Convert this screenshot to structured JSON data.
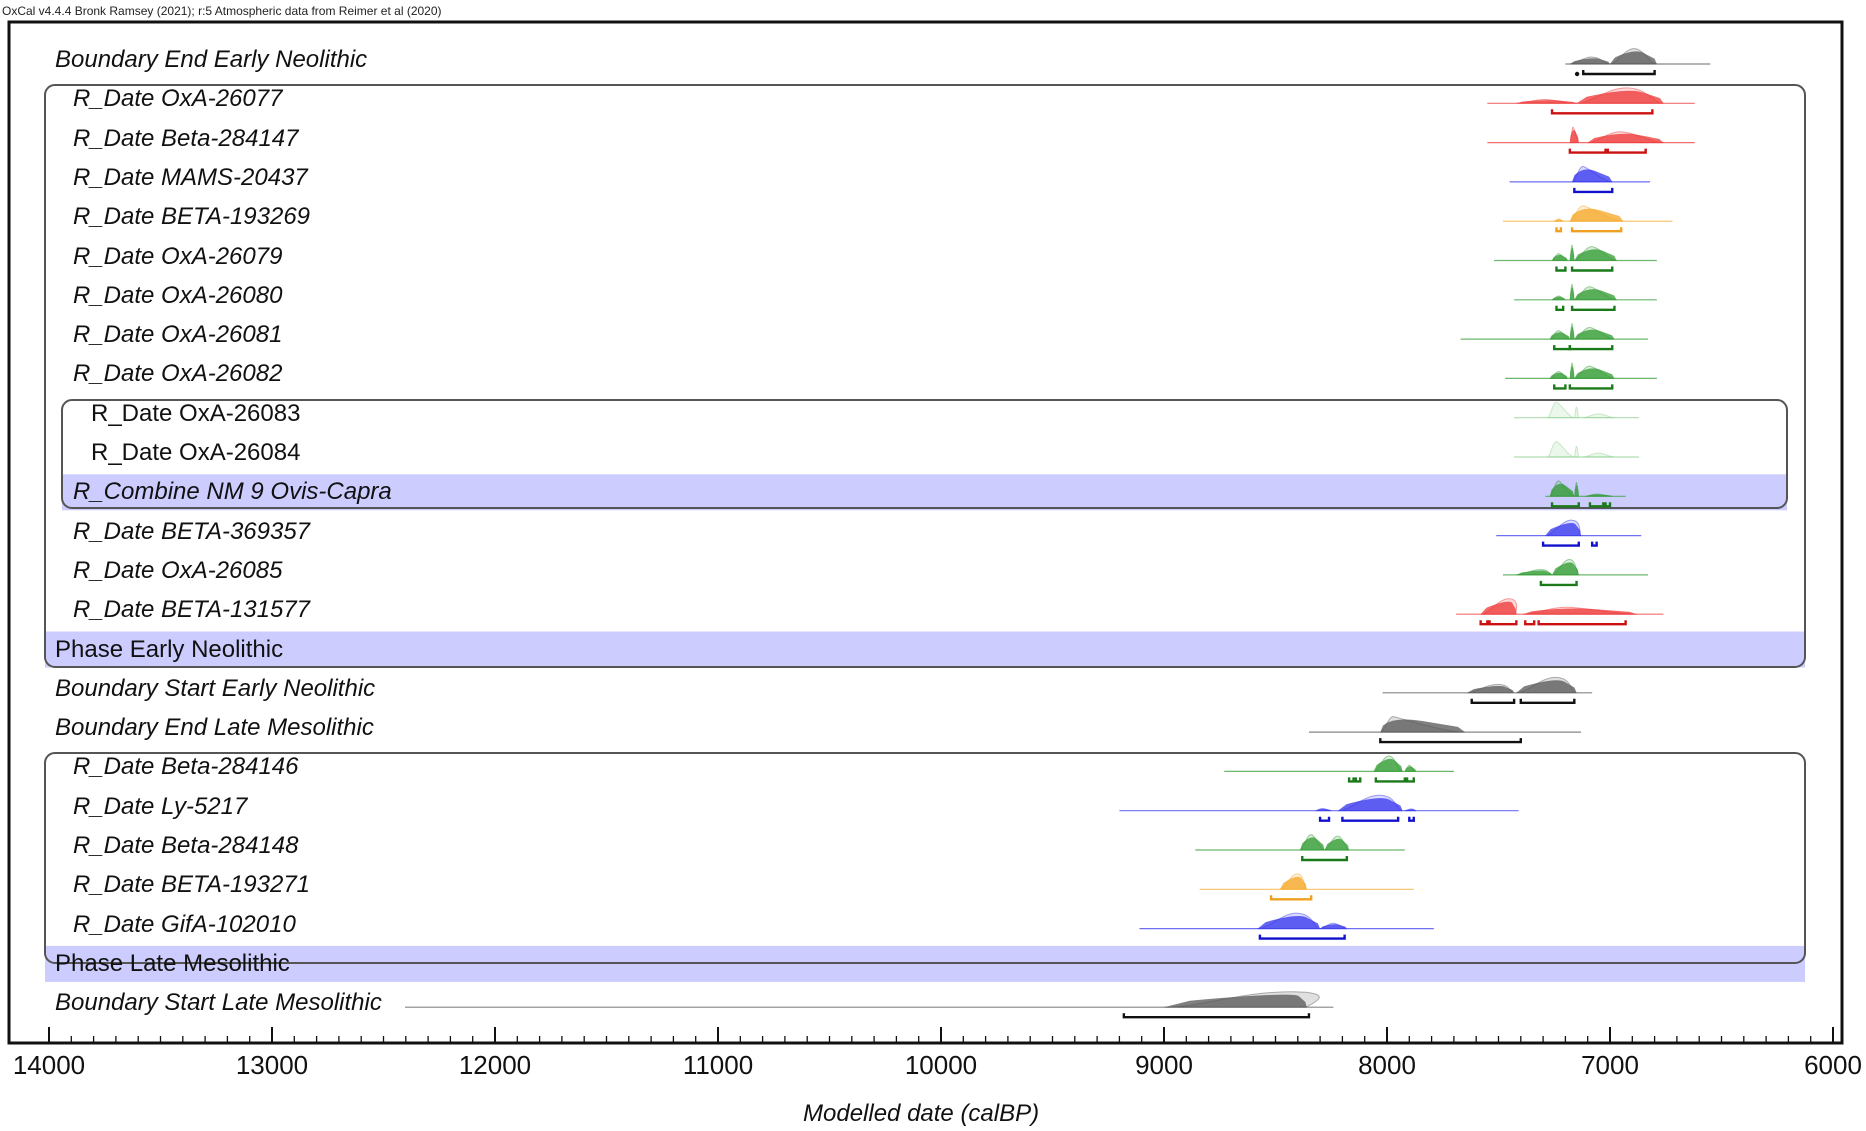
{
  "header": {
    "credit": "OxCal v4.4.4 Bronk Ramsey (2021); r:5 Atmospheric data from Reimer et al (2020)"
  },
  "colors": {
    "black": "#555555",
    "red": "#ee3333",
    "blue": "#3333ee",
    "orange": "#f5a623",
    "green": "#2e9a2e",
    "lightgreen": "#8fd08f",
    "band": "#ccccff",
    "frame": "#111111",
    "box": "#555555"
  },
  "axis": {
    "title": "Modelled date (calBP)",
    "ticks": [
      14000,
      13000,
      12000,
      11000,
      10000,
      9000,
      8000,
      7000,
      6000
    ],
    "tick_labels": [
      "14000",
      "13000",
      "12000",
      "11000",
      "10000",
      "9000",
      "8000",
      "7000",
      "6000"
    ],
    "range": [
      14000,
      6000
    ]
  },
  "chart_data": {
    "type": "range-distribution (OxCal multiplot)",
    "title": "OxCal v4.4.4 Bronk Ramsey (2021); r:5 Atmospheric data from Reimer et al (2020)",
    "xlabel": "Modelled date (calBP)",
    "ylabel": "",
    "xlim": [
      14000,
      6000
    ],
    "grid": false,
    "rows": [
      {
        "label": "Boundary End Early Neolithic",
        "italic": true,
        "indent": 0,
        "color": "black",
        "line": [
          7200,
          6550
        ],
        "peaks": [
          [
            7180,
            7000,
            0.45,
            7080
          ],
          [
            7000,
            6790,
            1.0,
            6890
          ]
        ],
        "hpd": [
          [
            7150,
            7145
          ],
          [
            7120,
            6800
          ]
        ]
      },
      {
        "label": "R_Date OxA-26077",
        "italic": true,
        "indent": 1,
        "color": "red",
        "line": [
          7550,
          6620
        ],
        "peaks": [
          [
            7420,
            7150,
            0.25,
            7290
          ],
          [
            7150,
            6760,
            1.0,
            6920
          ]
        ],
        "hpd": [
          [
            7260,
            6810
          ]
        ]
      },
      {
        "label": "R_Date Beta-284147",
        "italic": true,
        "indent": 1,
        "color": "red",
        "line": [
          7550,
          6620
        ],
        "peaks": [
          [
            7180,
            7140,
            1.0,
            7165
          ],
          [
            7100,
            6760,
            0.7,
            6950
          ]
        ],
        "hpd": [
          [
            7180,
            7020
          ],
          [
            7010,
            6840
          ]
        ]
      },
      {
        "label": "R_Date MAMS-20437",
        "italic": true,
        "indent": 1,
        "color": "blue",
        "line": [
          7450,
          6820
        ],
        "peaks": [
          [
            7170,
            6990,
            1.0,
            7120
          ]
        ],
        "hpd": [
          [
            7160,
            6990
          ]
        ]
      },
      {
        "label": "R_Date BETA-193269",
        "italic": true,
        "indent": 1,
        "color": "orange",
        "line": [
          7480,
          6720
        ],
        "peaks": [
          [
            7250,
            7210,
            0.15,
            7230
          ],
          [
            7180,
            6940,
            1.0,
            7120
          ]
        ],
        "hpd": [
          [
            7240,
            7220
          ],
          [
            7170,
            6950
          ]
        ]
      },
      {
        "label": "R_Date OxA-26079",
        "italic": true,
        "indent": 1,
        "color": "green",
        "line": [
          7520,
          6790
        ],
        "peaks": [
          [
            7260,
            7190,
            0.45,
            7230
          ],
          [
            7180,
            7160,
            1.0,
            7170
          ],
          [
            7160,
            6970,
            0.9,
            7080
          ]
        ],
        "hpd": [
          [
            7240,
            7200
          ],
          [
            7170,
            6990
          ]
        ]
      },
      {
        "label": "R_Date OxA-26080",
        "italic": true,
        "indent": 1,
        "color": "green",
        "line": [
          7430,
          6790
        ],
        "peaks": [
          [
            7260,
            7200,
            0.25,
            7230
          ],
          [
            7180,
            7160,
            1.0,
            7170
          ],
          [
            7160,
            6970,
            0.85,
            7090
          ]
        ],
        "hpd": [
          [
            7240,
            7210
          ],
          [
            7170,
            6980
          ]
        ]
      },
      {
        "label": "R_Date OxA-26081",
        "italic": true,
        "indent": 1,
        "color": "green",
        "line": [
          7670,
          6830
        ],
        "peaks": [
          [
            7270,
            7180,
            0.55,
            7230
          ],
          [
            7180,
            7160,
            1.0,
            7170
          ],
          [
            7160,
            6980,
            0.75,
            7090
          ]
        ],
        "hpd": [
          [
            7250,
            7180
          ],
          [
            7180,
            6990
          ]
        ]
      },
      {
        "label": "R_Date OxA-26082",
        "italic": true,
        "indent": 1,
        "color": "green",
        "line": [
          7470,
          6790
        ],
        "peaks": [
          [
            7270,
            7190,
            0.45,
            7230
          ],
          [
            7180,
            7160,
            1.0,
            7170
          ],
          [
            7160,
            6980,
            0.8,
            7090
          ]
        ],
        "hpd": [
          [
            7250,
            7200
          ],
          [
            7180,
            6990
          ]
        ]
      },
      {
        "label": "R_Date OxA-26083",
        "italic": false,
        "indent": 2,
        "color": "lightgreen",
        "line": [
          7430,
          6870
        ],
        "peaks": [
          [
            7280,
            7160,
            1.0,
            7240
          ],
          [
            7160,
            7140,
            0.7,
            7150
          ],
          [
            7120,
            6980,
            0.25,
            7050
          ]
        ],
        "hpd": []
      },
      {
        "label": "R_Date OxA-26084",
        "italic": false,
        "indent": 2,
        "color": "lightgreen",
        "line": [
          7430,
          6870
        ],
        "peaks": [
          [
            7280,
            7160,
            1.0,
            7240
          ],
          [
            7160,
            7140,
            0.7,
            7150
          ],
          [
            7120,
            6980,
            0.25,
            7050
          ]
        ],
        "hpd": []
      },
      {
        "label": "R_Combine NM 9 Ovis-Capra",
        "italic": true,
        "indent": 1,
        "color": "green",
        "band": true,
        "line": [
          7290,
          6930
        ],
        "peaks": [
          [
            7270,
            7160,
            1.0,
            7230
          ],
          [
            7160,
            7140,
            0.9,
            7150
          ],
          [
            7110,
            6990,
            0.15,
            7060
          ]
        ],
        "hpd": [
          [
            7260,
            7140
          ],
          [
            7090,
            7030
          ],
          [
            7020,
            7000
          ]
        ]
      },
      {
        "label": "R_Date BETA-369357",
        "italic": true,
        "indent": 1,
        "color": "blue",
        "line": [
          7510,
          6860
        ],
        "peaks": [
          [
            7290,
            7130,
            1.0,
            7170
          ]
        ],
        "hpd": [
          [
            7300,
            7140
          ],
          [
            7080,
            7060
          ]
        ]
      },
      {
        "label": "R_Date OxA-26085",
        "italic": true,
        "indent": 1,
        "color": "green",
        "line": [
          7480,
          6830
        ],
        "peaks": [
          [
            7420,
            7260,
            0.35,
            7310
          ],
          [
            7260,
            7140,
            1.0,
            7180
          ]
        ],
        "hpd": [
          [
            7310,
            7150
          ]
        ]
      },
      {
        "label": "R_Date BETA-131577",
        "italic": true,
        "indent": 1,
        "color": "red",
        "line": [
          7690,
          6760
        ],
        "peaks": [
          [
            7580,
            7420,
            1.0,
            7450
          ],
          [
            7390,
            6880,
            0.45,
            7190
          ]
        ],
        "hpd": [
          [
            7580,
            7550
          ],
          [
            7540,
            7420
          ],
          [
            7380,
            7340
          ],
          [
            7320,
            6930
          ]
        ]
      },
      {
        "label": "Phase Early Neolithic",
        "italic": false,
        "indent": 0,
        "band": true,
        "phase": true
      },
      {
        "label": "Boundary Start Early Neolithic",
        "italic": true,
        "indent": 0,
        "color": "black",
        "line": [
          8020,
          7080
        ],
        "peaks": [
          [
            7640,
            7430,
            0.55,
            7500
          ],
          [
            7420,
            7150,
            1.0,
            7240
          ]
        ],
        "hpd": [
          [
            7620,
            7430
          ],
          [
            7400,
            7160
          ]
        ]
      },
      {
        "label": "Boundary End Late Mesolithic",
        "italic": true,
        "indent": 0,
        "color": "black",
        "line": [
          8350,
          7130
        ],
        "peaks": [
          [
            8030,
            7650,
            1.0,
            7970
          ]
        ],
        "hpd": [
          [
            8030,
            7400
          ]
        ]
      },
      {
        "label": "R_Date Beta-284146",
        "italic": true,
        "indent": 1,
        "color": "green",
        "line": [
          8730,
          7700
        ],
        "peaks": [
          [
            8060,
            7930,
            1.0,
            7990
          ],
          [
            7920,
            7870,
            0.4,
            7900
          ]
        ],
        "hpd": [
          [
            8170,
            8150
          ],
          [
            8140,
            8120
          ],
          [
            8050,
            7920
          ],
          [
            7910,
            7880
          ]
        ]
      },
      {
        "label": "R_Date Ly-5217",
        "italic": true,
        "indent": 1,
        "color": "blue",
        "line": [
          9200,
          7410
        ],
        "peaks": [
          [
            8320,
            8250,
            0.15,
            8290
          ],
          [
            8220,
            7930,
            1.0,
            8030
          ],
          [
            7920,
            7870,
            0.12,
            7890
          ]
        ],
        "hpd": [
          [
            8300,
            8260
          ],
          [
            8200,
            7950
          ],
          [
            7900,
            7880
          ]
        ]
      },
      {
        "label": "R_Date Beta-284148",
        "italic": true,
        "indent": 1,
        "color": "green",
        "line": [
          8860,
          7920
        ],
        "peaks": [
          [
            8390,
            8280,
            1.0,
            8340
          ],
          [
            8280,
            8170,
            0.9,
            8220
          ]
        ],
        "hpd": [
          [
            8380,
            8180
          ]
        ]
      },
      {
        "label": "R_Date BETA-193271",
        "italic": true,
        "indent": 1,
        "color": "orange",
        "line": [
          8840,
          7880
        ],
        "peaks": [
          [
            8480,
            8360,
            1.0,
            8400
          ]
        ],
        "hpd": [
          [
            8520,
            8340
          ]
        ]
      },
      {
        "label": "R_Date GifA-102010",
        "italic": true,
        "indent": 1,
        "color": "blue",
        "line": [
          9110,
          7790
        ],
        "peaks": [
          [
            8580,
            8300,
            1.0,
            8400
          ],
          [
            8300,
            8180,
            0.35,
            8240
          ]
        ],
        "hpd": [
          [
            8570,
            8190
          ]
        ]
      },
      {
        "label": "Phase Late Mesolithic",
        "italic": false,
        "indent": 0,
        "band": true,
        "phase": true
      },
      {
        "label": "Boundary Start Late Mesolithic",
        "italic": true,
        "indent": 0,
        "color": "black",
        "line": [
          12400,
          8240
        ],
        "peaks": [
          [
            9000,
            8360,
            1.0,
            8420
          ]
        ],
        "hpd": [
          [
            9180,
            8350
          ]
        ],
        "line_from_label": true
      }
    ]
  }
}
